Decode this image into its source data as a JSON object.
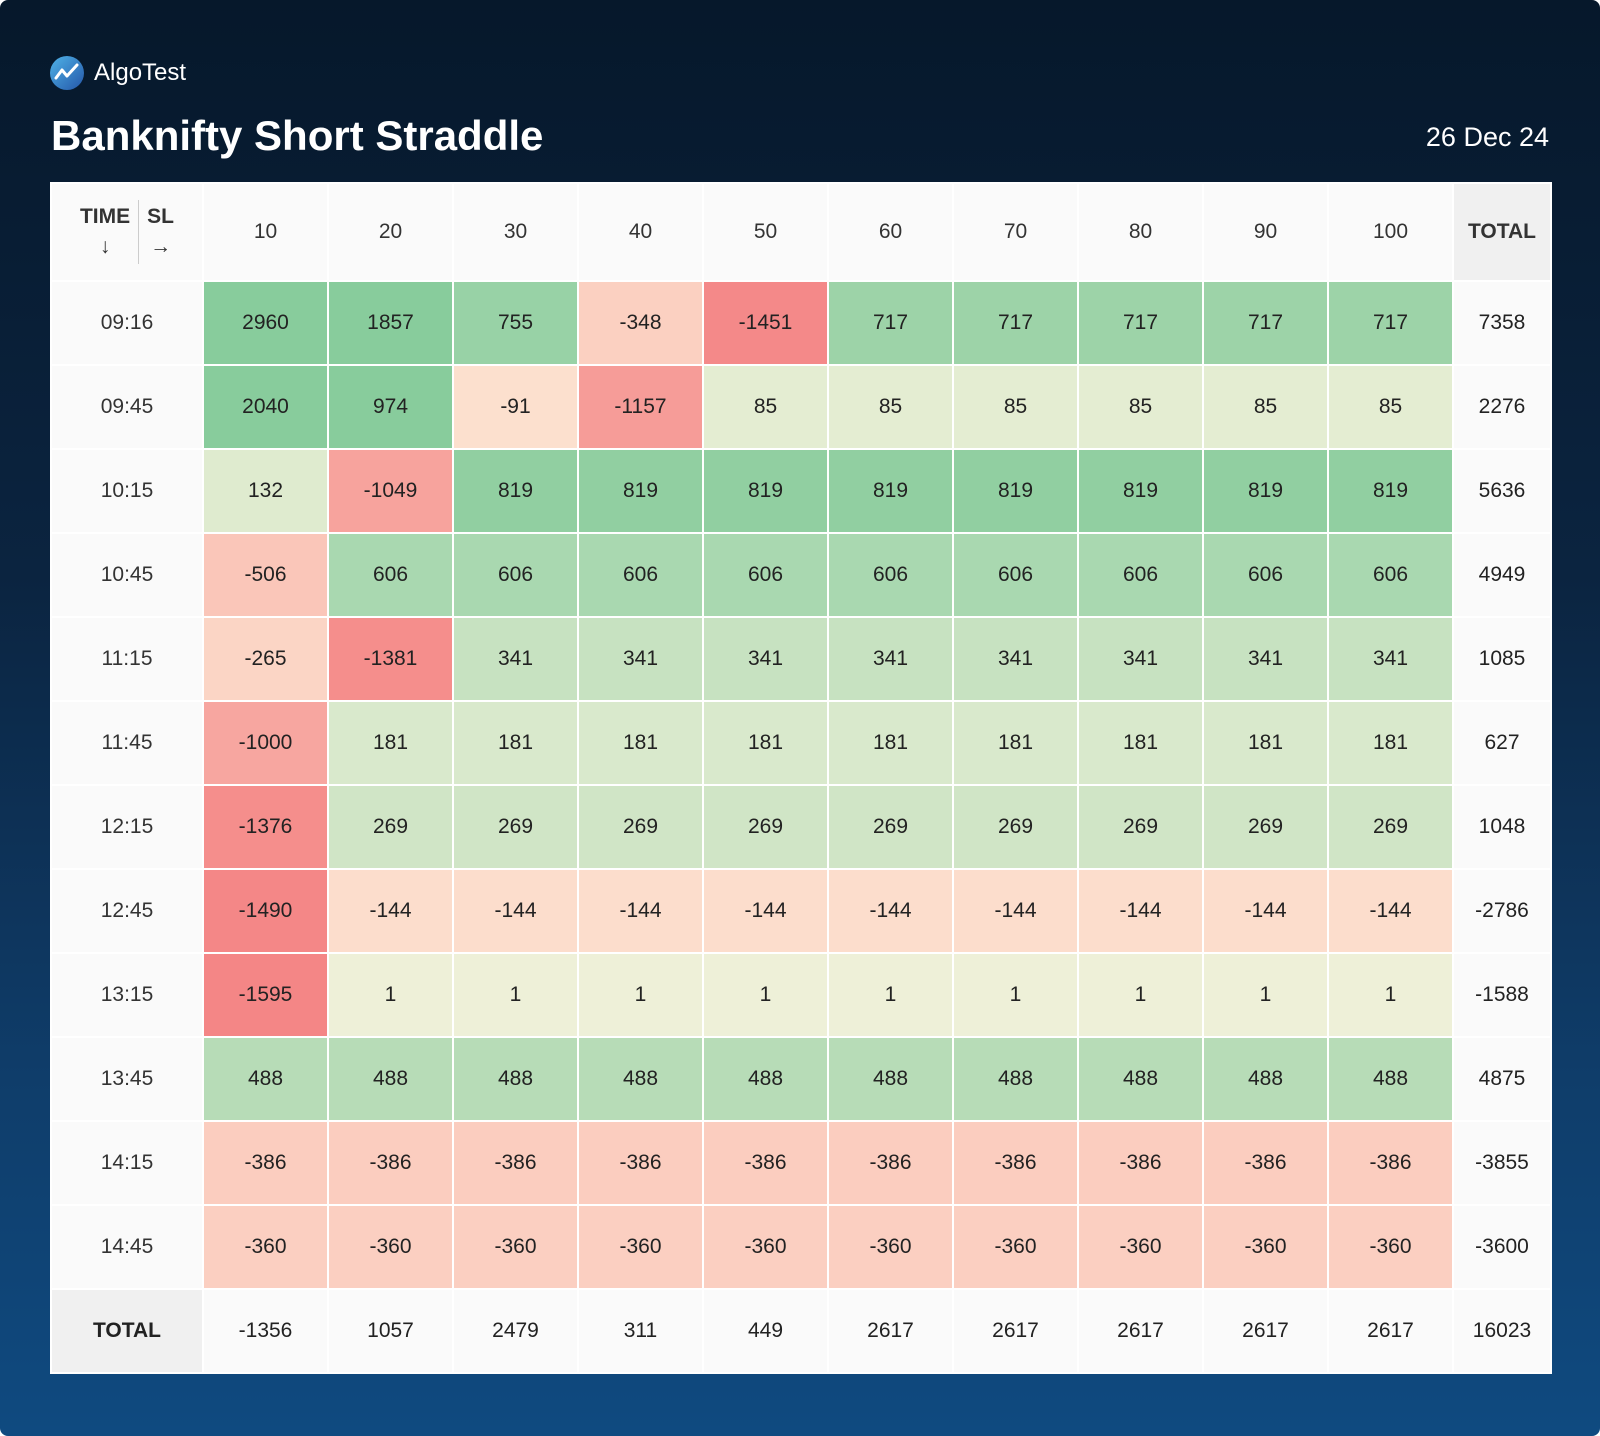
{
  "header": {
    "brand": "AlgoTest",
    "title": "Banknifty Short Straddle",
    "date": "26 Dec 24"
  },
  "table": {
    "corner": {
      "row_label": "TIME",
      "row_arrow": "↓",
      "col_label": "SL",
      "col_arrow": "→"
    },
    "columns": [
      10,
      20,
      30,
      40,
      50,
      60,
      70,
      80,
      90,
      100
    ],
    "total_label": "TOTAL",
    "rows": [
      {
        "time": "09:16",
        "values": [
          2960,
          1857,
          755,
          -348,
          -1451,
          717,
          717,
          717,
          717,
          717
        ],
        "total": 7358
      },
      {
        "time": "09:45",
        "values": [
          2040,
          974,
          -91,
          -1157,
          85,
          85,
          85,
          85,
          85,
          85
        ],
        "total": 2276
      },
      {
        "time": "10:15",
        "values": [
          132,
          -1049,
          819,
          819,
          819,
          819,
          819,
          819,
          819,
          819
        ],
        "total": 5636
      },
      {
        "time": "10:45",
        "values": [
          -506,
          606,
          606,
          606,
          606,
          606,
          606,
          606,
          606,
          606
        ],
        "total": 4949
      },
      {
        "time": "11:15",
        "values": [
          -265,
          -1381,
          341,
          341,
          341,
          341,
          341,
          341,
          341,
          341
        ],
        "total": 1085
      },
      {
        "time": "11:45",
        "values": [
          -1000,
          181,
          181,
          181,
          181,
          181,
          181,
          181,
          181,
          181
        ],
        "total": 627
      },
      {
        "time": "12:15",
        "values": [
          -1376,
          269,
          269,
          269,
          269,
          269,
          269,
          269,
          269,
          269
        ],
        "total": 1048
      },
      {
        "time": "12:45",
        "values": [
          -1490,
          -144,
          -144,
          -144,
          -144,
          -144,
          -144,
          -144,
          -144,
          -144
        ],
        "total": -2786
      },
      {
        "time": "13:15",
        "values": [
          -1595,
          1,
          1,
          1,
          1,
          1,
          1,
          1,
          1,
          1
        ],
        "total": -1588
      },
      {
        "time": "13:45",
        "values": [
          488,
          488,
          488,
          488,
          488,
          488,
          488,
          488,
          488,
          488
        ],
        "total": 4875
      },
      {
        "time": "14:15",
        "values": [
          -386,
          -386,
          -386,
          -386,
          -386,
          -386,
          -386,
          -386,
          -386,
          -386
        ],
        "total": -3855
      },
      {
        "time": "14:45",
        "values": [
          -360,
          -360,
          -360,
          -360,
          -360,
          -360,
          -360,
          -360,
          -360,
          -360
        ],
        "total": -3600
      }
    ],
    "column_totals": [
      -1356,
      1057,
      2479,
      311,
      449,
      2617,
      2617,
      2617,
      2617,
      2617
    ],
    "grand_total": 16023
  }
}
